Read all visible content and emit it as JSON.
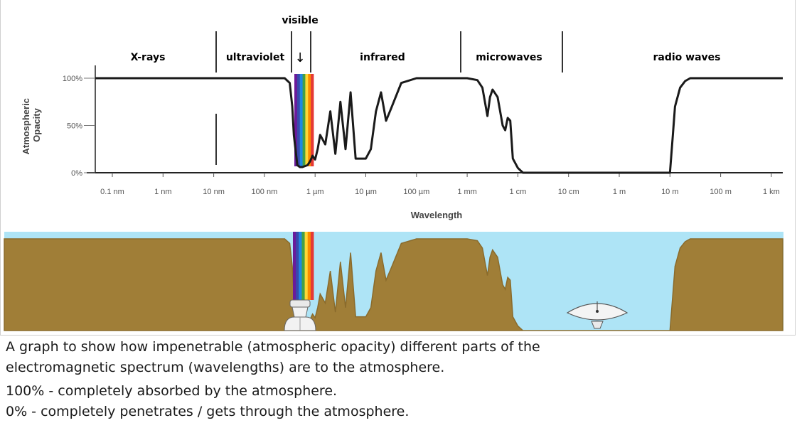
{
  "chart_data": {
    "type": "line",
    "xlabel": "Wavelength",
    "ylabel": "Atmospheric Opacity",
    "x_scale": "log",
    "x_ticks": [
      "0.1 nm",
      "1 nm",
      "10 nm",
      "100 nm",
      "1 µm",
      "10 µm",
      "100 µm",
      "1 mm",
      "1 cm",
      "10 cm",
      "1 m",
      "10 m",
      "100 m",
      "1 km"
    ],
    "y_ticks": [
      "100%",
      "50%",
      "0%"
    ],
    "ylim": [
      0,
      100
    ],
    "bands": [
      {
        "name": "X-rays"
      },
      {
        "name": "ultraviolet"
      },
      {
        "name": "infrared"
      },
      {
        "name": "microwaves"
      },
      {
        "name": "radio waves"
      }
    ],
    "visible_label": "visible",
    "visible_arrow": "↓",
    "series": [
      {
        "x_log10_m": [
          -11.0,
          -8.0,
          -6.6,
          -6.5,
          -6.45,
          -6.42,
          -6.35,
          -6.3,
          -6.25,
          -6.15,
          -6.1,
          -6.05,
          -6.0,
          -5.95,
          -5.9,
          -5.8,
          -5.7,
          -5.6,
          -5.5,
          -5.4,
          -5.3,
          -5.2,
          -5.1,
          -5.0,
          -4.9,
          -4.8,
          -4.7,
          -4.6,
          -4.5,
          -4.3,
          -4.0,
          -3.5,
          -3.0,
          -2.8,
          -2.7,
          -2.6,
          -2.55,
          -2.5,
          -2.4,
          -2.3,
          -2.25,
          -2.2,
          -2.15,
          -2.1,
          -2.0,
          -1.9,
          -1.8,
          0.0,
          1.0,
          1.05,
          1.1,
          1.2,
          1.3,
          1.4,
          1.5,
          1.6,
          2.0,
          3.0,
          4.0
        ],
        "y": [
          100,
          100,
          100,
          95,
          70,
          40,
          8,
          6,
          6,
          8,
          12,
          18,
          14,
          25,
          40,
          30,
          65,
          20,
          75,
          25,
          85,
          15,
          15,
          15,
          25,
          65,
          85,
          55,
          68,
          95,
          100,
          100,
          100,
          98,
          90,
          60,
          80,
          88,
          80,
          50,
          45,
          58,
          55,
          15,
          5,
          0,
          0,
          0,
          0,
          35,
          70,
          90,
          97,
          100,
          100,
          100,
          100,
          100,
          100
        ]
      }
    ]
  },
  "lower_panel": {
    "colors": {
      "sky": "#aee4f6",
      "ground": "#a07e37",
      "ground_edge": "#8a6b2c"
    },
    "icons": [
      "telescope-icon",
      "radio-dish-icon"
    ]
  },
  "caption": {
    "line1": "A graph to show how impenetrable (atmospheric opacity) different parts of the",
    "line2": "electromagnetic spectrum (wavelengths) are to the atmosphere.",
    "line3": "100% - completely absorbed by the atmosphere.",
    "line4": "0% - completely penetrates / gets through the atmosphere."
  }
}
